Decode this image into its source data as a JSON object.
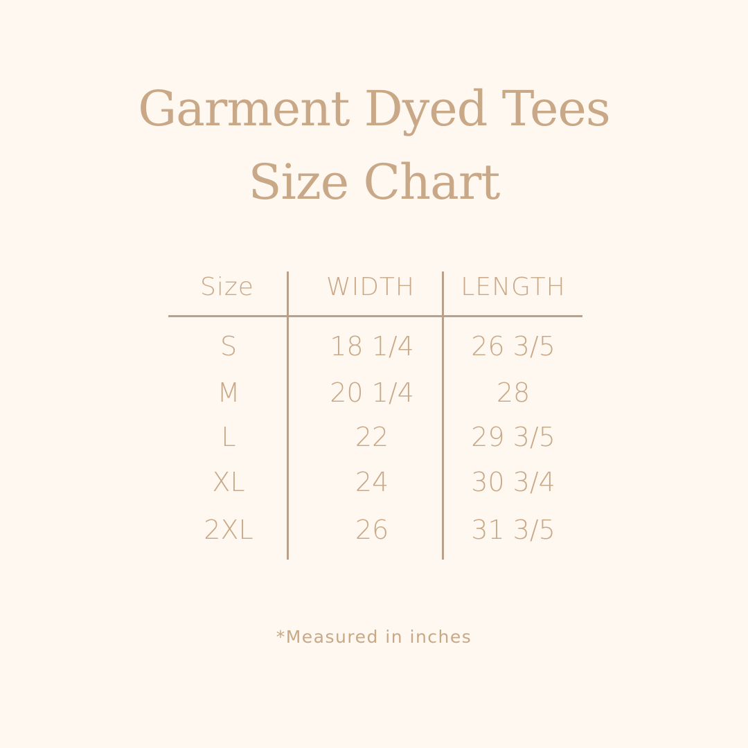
{
  "title": {
    "line1": "Garment Dyed Tees",
    "line2": "Size Chart"
  },
  "table": {
    "headers": [
      "Size",
      "WIDTH",
      "LENGTH"
    ],
    "rows": [
      [
        "S",
        "18 1/4",
        "26 3/5"
      ],
      [
        "M",
        "20 1/4",
        "28"
      ],
      [
        "L",
        "22",
        "29 3/5"
      ],
      [
        "XL",
        "24",
        "30 3/4"
      ],
      [
        "2XL",
        "26",
        "31 3/5"
      ]
    ]
  },
  "footnote": "*Measured in inches",
  "colors": {
    "background": "#fef8f0",
    "text": "#c8a887",
    "lines": "#b9a08b"
  }
}
